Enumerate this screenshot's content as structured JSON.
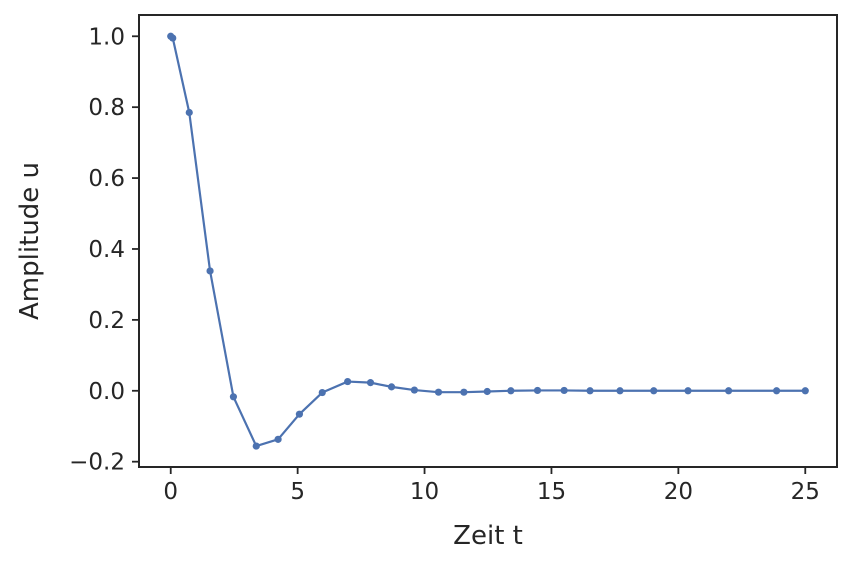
{
  "chart_data": {
    "type": "line",
    "title": "",
    "xlabel": "Zeit t",
    "ylabel": "Amplitude u",
    "xlim": [
      -1.25,
      26.25
    ],
    "ylim": [
      -0.215,
      1.06
    ],
    "xticks": [
      0,
      5,
      10,
      15,
      20,
      25
    ],
    "xtick_labels": [
      "0",
      "5",
      "10",
      "15",
      "20",
      "25"
    ],
    "yticks": [
      -0.2,
      0.0,
      0.2,
      0.4,
      0.6,
      0.8,
      1.0
    ],
    "ytick_labels": [
      "−0.2",
      "0.0",
      "0.2",
      "0.4",
      "0.6",
      "0.8",
      "1.0"
    ],
    "grid": false,
    "legend": "none",
    "series": [
      {
        "color": "#4c72b0",
        "marker": "circle",
        "x": [
          0.0,
          0.08,
          0.73,
          1.55,
          2.47,
          3.37,
          4.23,
          5.07,
          5.97,
          6.97,
          7.87,
          8.7,
          9.6,
          10.55,
          11.55,
          12.47,
          13.4,
          14.45,
          15.5,
          16.52,
          17.7,
          19.03,
          20.38,
          21.98,
          23.87,
          25.0
        ],
        "y": [
          1.0,
          0.995,
          0.785,
          0.338,
          -0.017,
          -0.156,
          -0.137,
          -0.066,
          -0.005,
          0.026,
          0.023,
          0.011,
          0.002,
          -0.004,
          -0.004,
          -0.002,
          0.0,
          0.001,
          0.001,
          0.0,
          0.0,
          0.0,
          0.0,
          0.0,
          0.0,
          0.0
        ]
      }
    ]
  }
}
